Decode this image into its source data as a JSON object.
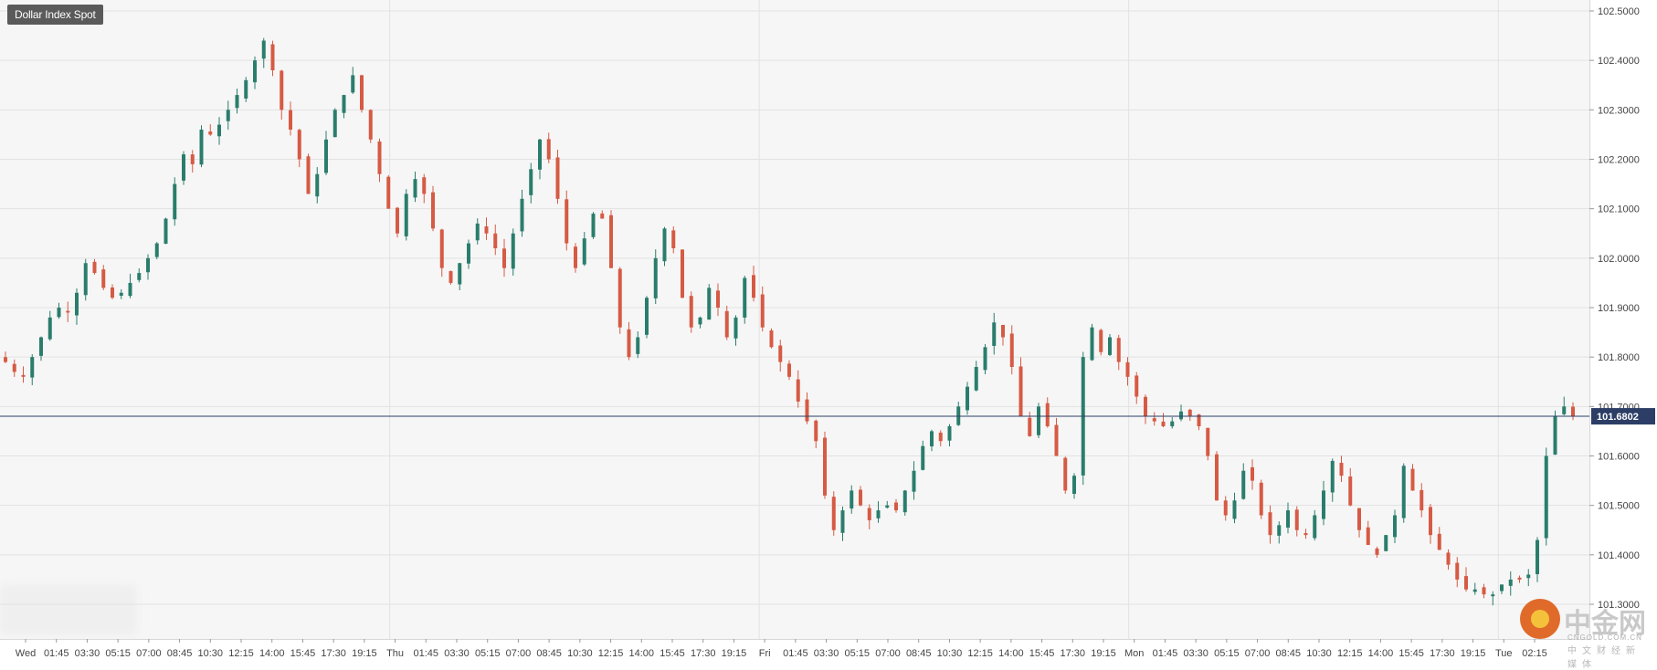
{
  "chart_title": "Dollar Index Spot",
  "current_price_label": "101.6802",
  "colors": {
    "up": "#2a7d6c",
    "down": "#d65a44",
    "price_line": "#2c3e66",
    "grid": "#e2e2e2",
    "badge": "#5a5a5a"
  },
  "watermark": {
    "brand": "中金网",
    "url": "CNGOLD.COM.CN",
    "sub": "中文财经新媒体"
  },
  "chart_data": {
    "type": "candlestick",
    "title": "Dollar Index Spot",
    "current_price": 101.6802,
    "ylim": [
      101.27,
      102.52
    ],
    "y_ticks": [
      "102.5000",
      "102.4000",
      "102.3000",
      "102.2000",
      "102.1000",
      "102.0000",
      "101.9000",
      "101.8000",
      "101.7000",
      "101.6000",
      "101.5000",
      "101.4000",
      "101.3000"
    ],
    "x_ticks": [
      "Wed",
      "01:45",
      "03:30",
      "05:15",
      "07:00",
      "08:45",
      "10:30",
      "12:15",
      "14:00",
      "15:45",
      "17:30",
      "19:15",
      "Thu",
      "01:45",
      "03:30",
      "05:15",
      "07:00",
      "08:45",
      "10:30",
      "12:15",
      "14:00",
      "15:45",
      "17:30",
      "19:15",
      "Fri",
      "01:45",
      "03:30",
      "05:15",
      "07:00",
      "08:45",
      "10:30",
      "12:15",
      "14:00",
      "15:45",
      "17:30",
      "19:15",
      "Mon",
      "01:45",
      "03:30",
      "05:15",
      "07:00",
      "08:45",
      "10:30",
      "12:15",
      "14:00",
      "15:45",
      "17:30",
      "19:15",
      "Tue",
      "02:15"
    ],
    "day_separators": [
      "Thu",
      "Fri",
      "Mon",
      "Tue"
    ],
    "grid": true,
    "close_path": [
      101.79,
      101.77,
      101.76,
      101.8,
      101.84,
      101.88,
      101.9,
      101.89,
      101.93,
      101.99,
      101.97,
      101.94,
      101.92,
      101.93,
      101.95,
      101.97,
      102.0,
      102.03,
      102.08,
      102.15,
      102.21,
      102.19,
      102.26,
      102.25,
      102.27,
      102.3,
      102.33,
      102.36,
      102.4,
      102.44,
      102.38,
      102.3,
      102.26,
      102.2,
      102.13,
      102.17,
      102.24,
      102.3,
      102.33,
      102.37,
      102.3,
      102.24,
      102.17,
      102.1,
      102.05,
      102.13,
      102.16,
      102.13,
      102.06,
      101.98,
      101.95,
      101.99,
      102.03,
      102.07,
      102.05,
      102.02,
      101.98,
      102.05,
      102.12,
      102.18,
      102.24,
      102.2,
      102.12,
      102.03,
      101.98,
      102.04,
      102.09,
      102.08,
      101.98,
      101.86,
      101.8,
      101.84,
      101.92,
      102.0,
      102.06,
      102.02,
      101.92,
      101.86,
      101.88,
      101.94,
      101.9,
      101.84,
      101.88,
      101.96,
      101.92,
      101.86,
      101.82,
      101.79,
      101.76,
      101.71,
      101.67,
      101.63,
      101.52,
      101.45,
      101.49,
      101.53,
      101.5,
      101.47,
      101.49,
      101.5,
      101.49,
      101.53,
      101.57,
      101.62,
      101.65,
      101.63,
      101.66,
      101.7,
      101.74,
      101.78,
      101.82,
      101.87,
      101.84,
      101.78,
      101.68,
      101.64,
      101.7,
      101.66,
      101.6,
      101.53,
      101.56,
      101.8,
      101.86,
      101.81,
      101.84,
      101.79,
      101.76,
      101.72,
      101.68,
      101.67,
      101.66,
      101.67,
      101.69,
      101.68,
      101.66,
      101.6,
      101.51,
      101.48,
      101.51,
      101.57,
      101.55,
      101.48,
      101.44,
      101.46,
      101.49,
      101.45,
      101.44,
      101.48,
      101.53,
      101.59,
      101.56,
      101.5,
      101.45,
      101.42,
      101.4,
      101.44,
      101.48,
      101.58,
      101.53,
      101.49,
      101.44,
      101.41,
      101.38,
      101.35,
      101.33,
      101.33,
      101.32,
      101.32,
      101.34,
      101.35,
      101.35,
      101.36,
      101.43,
      101.6,
      101.68,
      101.7,
      101.68
    ]
  }
}
